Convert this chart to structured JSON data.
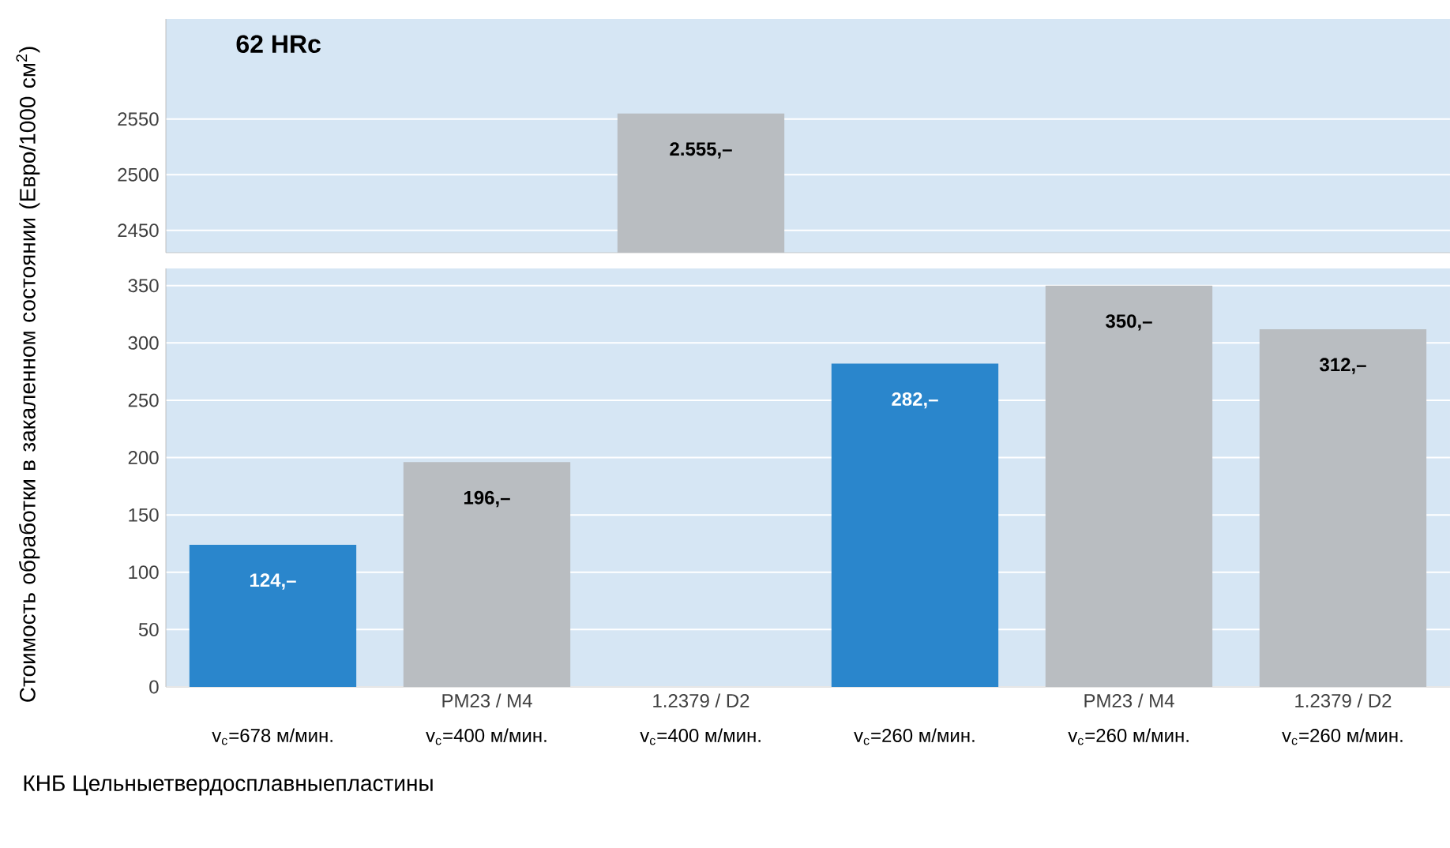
{
  "chart_data": [
    {
      "type": "bar",
      "values": [
        null,
        null,
        2555,
        null,
        null,
        null
      ],
      "colors": [
        "#2a86cc",
        "#b9bdc1",
        "#b9bdc1",
        "#2a86cc",
        "#b9bdc1",
        "#b9bdc1"
      ],
      "value_labels": [
        null,
        null,
        "2.555,–",
        null,
        null,
        null
      ],
      "ylim": [
        2430,
        2640
      ],
      "yticks": [
        2450,
        2500,
        2550
      ],
      "grid": "y",
      "tick_labels": "y",
      "annotations": [
        "62 HRc"
      ]
    },
    {
      "type": "bar",
      "categories": [
        null,
        "PM23 / M4",
        "1.2379 / D2",
        null,
        "PM23 / M4",
        "1.2379 / D2"
      ],
      "values": [
        124,
        196,
        null,
        282,
        350,
        312
      ],
      "colors": [
        "#2a86cc",
        "#b9bdc1",
        "#b9bdc1",
        "#2a86cc",
        "#b9bdc1",
        "#b9bdc1"
      ],
      "value_labels": [
        "124,–",
        "196,–",
        null,
        "282,–",
        "350,–",
        "312,–"
      ],
      "ylim": [
        0,
        365
      ],
      "yticks": [
        0,
        50,
        100,
        150,
        200,
        250,
        300,
        350
      ],
      "grid": "y",
      "ylabel": "Стоимость обработки в закаленном состоянии (Евро/1000 см$^{2}$)",
      "xlabel": "КНБ Цельныетвердосплавныепластины",
      "annotations": [
        "v$_{c}$=678 м/мин.",
        "v$_{c}$=400 м/мин.",
        "v$_{c}$=400 м/мин.",
        "v$_{c}$=260 м/мин.",
        "v$_{c}$=260 м/мин.",
        "v$_{c}$=260 м/мин."
      ]
    }
  ]
}
